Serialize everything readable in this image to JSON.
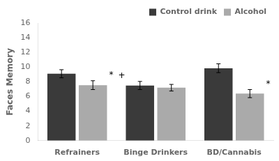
{
  "chart_data": {
    "type": "bar",
    "categories": [
      "Refrainers",
      "Binge Drinkers",
      "BD/Cannabis"
    ],
    "series": [
      {
        "name": "Control drink",
        "color": "#3a3a3a",
        "values": [
          9.1,
          7.5,
          9.85
        ],
        "errors": [
          0.55,
          0.55,
          0.6
        ]
      },
      {
        "name": "Alcohol",
        "color": "#aaaaaa",
        "values": [
          7.55,
          7.2,
          6.4
        ],
        "errors": [
          0.6,
          0.45,
          0.55
        ]
      }
    ],
    "ylabel": "Faces Memory",
    "ylim": [
      0,
      16
    ],
    "yticks": [
      0,
      2,
      4,
      6,
      8,
      10,
      12,
      14,
      16
    ],
    "annotations": [
      {
        "text": "*",
        "category": "Refrainers",
        "series": "Alcohol"
      },
      {
        "text": "+",
        "category": "Binge Drinkers",
        "series": "Control drink"
      },
      {
        "text": "*",
        "category": "BD/Cannabis",
        "series": "Alcohol"
      }
    ],
    "grid": false,
    "legend": "upper right"
  }
}
